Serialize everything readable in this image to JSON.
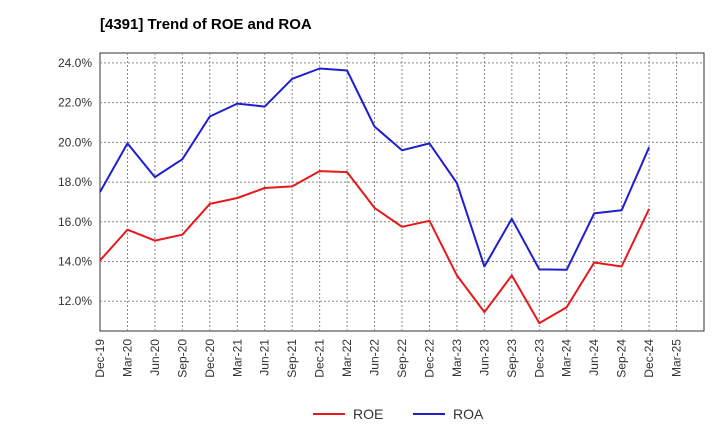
{
  "chart_data": {
    "type": "line",
    "title": "[4391]  Trend of ROE and ROA",
    "xlabel": "",
    "ylabel": "",
    "categories": [
      "Dec-19",
      "Mar-20",
      "Jun-20",
      "Sep-20",
      "Dec-20",
      "Mar-21",
      "Jun-21",
      "Sep-21",
      "Dec-21",
      "Mar-22",
      "Jun-22",
      "Sep-22",
      "Dec-22",
      "Mar-23",
      "Jun-23",
      "Sep-23",
      "Dec-23",
      "Mar-24",
      "Jun-24",
      "Sep-24",
      "Dec-24",
      "Mar-25"
    ],
    "yticks": [
      "12.0%",
      "14.0%",
      "16.0%",
      "18.0%",
      "20.0%",
      "22.0%",
      "24.0%"
    ],
    "ylim": [
      10.5,
      24.5
    ],
    "grid": true,
    "legend_position": "bottom-center",
    "series": [
      {
        "name": "ROE",
        "color": "#e41a1c",
        "values": [
          14.05,
          15.6,
          15.05,
          15.35,
          16.9,
          17.2,
          17.7,
          17.78,
          18.55,
          18.5,
          16.7,
          15.75,
          16.05,
          13.3,
          11.45,
          13.3,
          10.9,
          11.7,
          13.95,
          13.75,
          16.65,
          null
        ]
      },
      {
        "name": "ROA",
        "color": "#1f1fcf",
        "values": [
          17.5,
          19.95,
          18.25,
          19.15,
          21.3,
          21.95,
          21.8,
          23.2,
          23.72,
          23.62,
          20.8,
          19.6,
          19.95,
          17.95,
          13.75,
          16.15,
          13.6,
          13.58,
          16.42,
          16.58,
          19.75,
          null
        ]
      }
    ]
  }
}
